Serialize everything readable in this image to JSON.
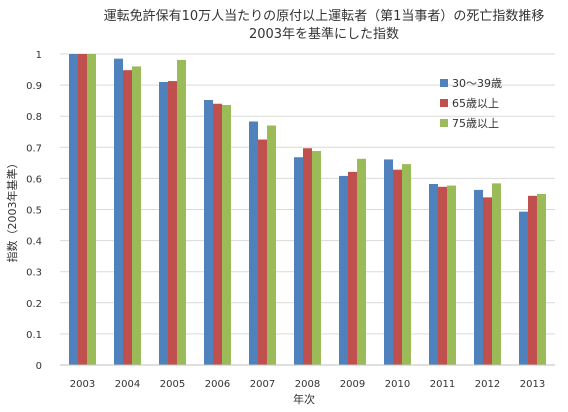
{
  "chart_data": {
    "type": "bar",
    "title": "運転免許保有10万人当たりの原付以上運転者（第1当事者）の死亡指数推移",
    "subtitle": "2003年を基準にした指数",
    "xlabel": "年次",
    "ylabel": "指数（2003年基準）",
    "ylim": [
      0,
      1
    ],
    "yticks": [
      "0",
      "0.1",
      "0.2",
      "0.3",
      "0.4",
      "0.5",
      "0.6",
      "0.7",
      "0.8",
      "0.9",
      "1"
    ],
    "grid": true,
    "legend_position": "right",
    "categories": [
      "2003",
      "2004",
      "2005",
      "2006",
      "2007",
      "2008",
      "2009",
      "2010",
      "2011",
      "2012",
      "2013"
    ],
    "series": [
      {
        "name": "30～39歳",
        "color": "#4f81bd",
        "values": [
          1.0,
          0.985,
          0.91,
          0.852,
          0.783,
          0.668,
          0.608,
          0.661,
          0.582,
          0.563,
          0.493
        ]
      },
      {
        "name": "65歳以上",
        "color": "#c0504d",
        "values": [
          1.0,
          0.948,
          0.913,
          0.84,
          0.725,
          0.697,
          0.621,
          0.628,
          0.573,
          0.539,
          0.544
        ]
      },
      {
        "name": "75歳以上",
        "color": "#9bbb59",
        "values": [
          1.0,
          0.96,
          0.981,
          0.836,
          0.77,
          0.688,
          0.663,
          0.646,
          0.577,
          0.584,
          0.55
        ]
      }
    ]
  }
}
